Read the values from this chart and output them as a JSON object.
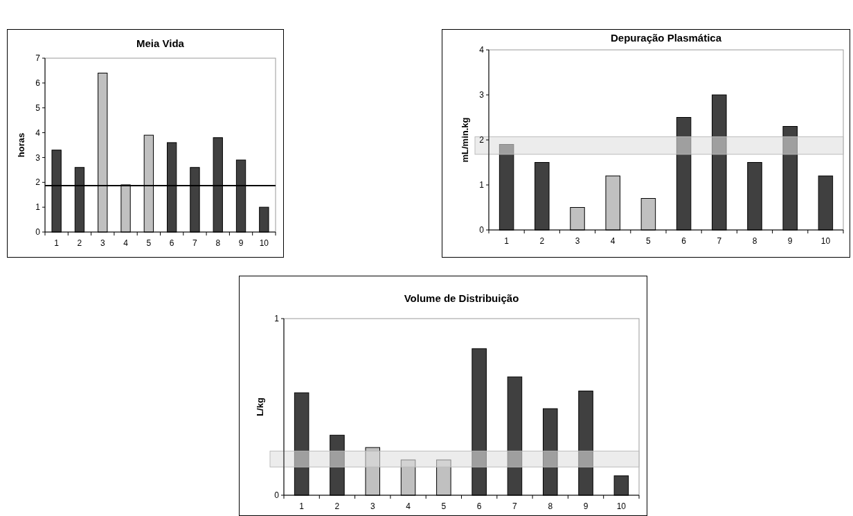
{
  "chart_data": [
    {
      "type": "bar",
      "title": "Meia Vida",
      "ylabel": "horas",
      "categories": [
        "1",
        "2",
        "3",
        "4",
        "5",
        "6",
        "7",
        "8",
        "9",
        "10"
      ],
      "values": [
        3.3,
        2.6,
        6.4,
        1.9,
        3.9,
        3.6,
        2.6,
        3.8,
        2.9,
        1.0
      ],
      "colors": [
        "#404040",
        "#404040",
        "#c0c0c0",
        "#c0c0c0",
        "#c0c0c0",
        "#404040",
        "#404040",
        "#404040",
        "#404040",
        "#404040"
      ],
      "ylim": [
        0,
        7
      ],
      "yticks": [
        0,
        1,
        2,
        3,
        4,
        5,
        6,
        7
      ],
      "grid": false,
      "ref_lines": [
        {
          "axis": "y",
          "value": 1.87,
          "color": "#000000"
        }
      ]
    },
    {
      "type": "bar",
      "title": "Depuração Plasmática",
      "ylabel": "mL/min.kg",
      "categories": [
        "1",
        "2",
        "3",
        "4",
        "5",
        "6",
        "7",
        "8",
        "9",
        "10"
      ],
      "values": [
        1.9,
        1.5,
        0.5,
        1.2,
        0.7,
        2.5,
        3.0,
        1.5,
        2.3,
        1.2
      ],
      "colors": [
        "#404040",
        "#404040",
        "#c0c0c0",
        "#c0c0c0",
        "#c0c0c0",
        "#404040",
        "#404040",
        "#404040",
        "#404040",
        "#404040"
      ],
      "ylim": [
        0,
        4
      ],
      "yticks": [
        0,
        1,
        2,
        3,
        4
      ],
      "grid": false,
      "bands": [
        {
          "axis": "y",
          "from": 1.68,
          "to": 2.07,
          "color": "#e0e0e0"
        }
      ]
    },
    {
      "type": "bar",
      "title": "Volume de Distribuição",
      "ylabel": "L/kg",
      "categories": [
        "1",
        "2",
        "3",
        "4",
        "5",
        "6",
        "7",
        "8",
        "9",
        "10"
      ],
      "values": [
        0.58,
        0.34,
        0.27,
        0.2,
        0.2,
        0.83,
        0.67,
        0.49,
        0.59,
        0.11
      ],
      "colors": [
        "#404040",
        "#404040",
        "#c0c0c0",
        "#c0c0c0",
        "#c0c0c0",
        "#404040",
        "#404040",
        "#404040",
        "#404040",
        "#404040"
      ],
      "ylim": [
        0,
        1
      ],
      "yticks": [
        0,
        1
      ],
      "grid": false,
      "bands": [
        {
          "axis": "y",
          "from": 0.16,
          "to": 0.25,
          "color": "#e0e0e0"
        }
      ]
    }
  ]
}
